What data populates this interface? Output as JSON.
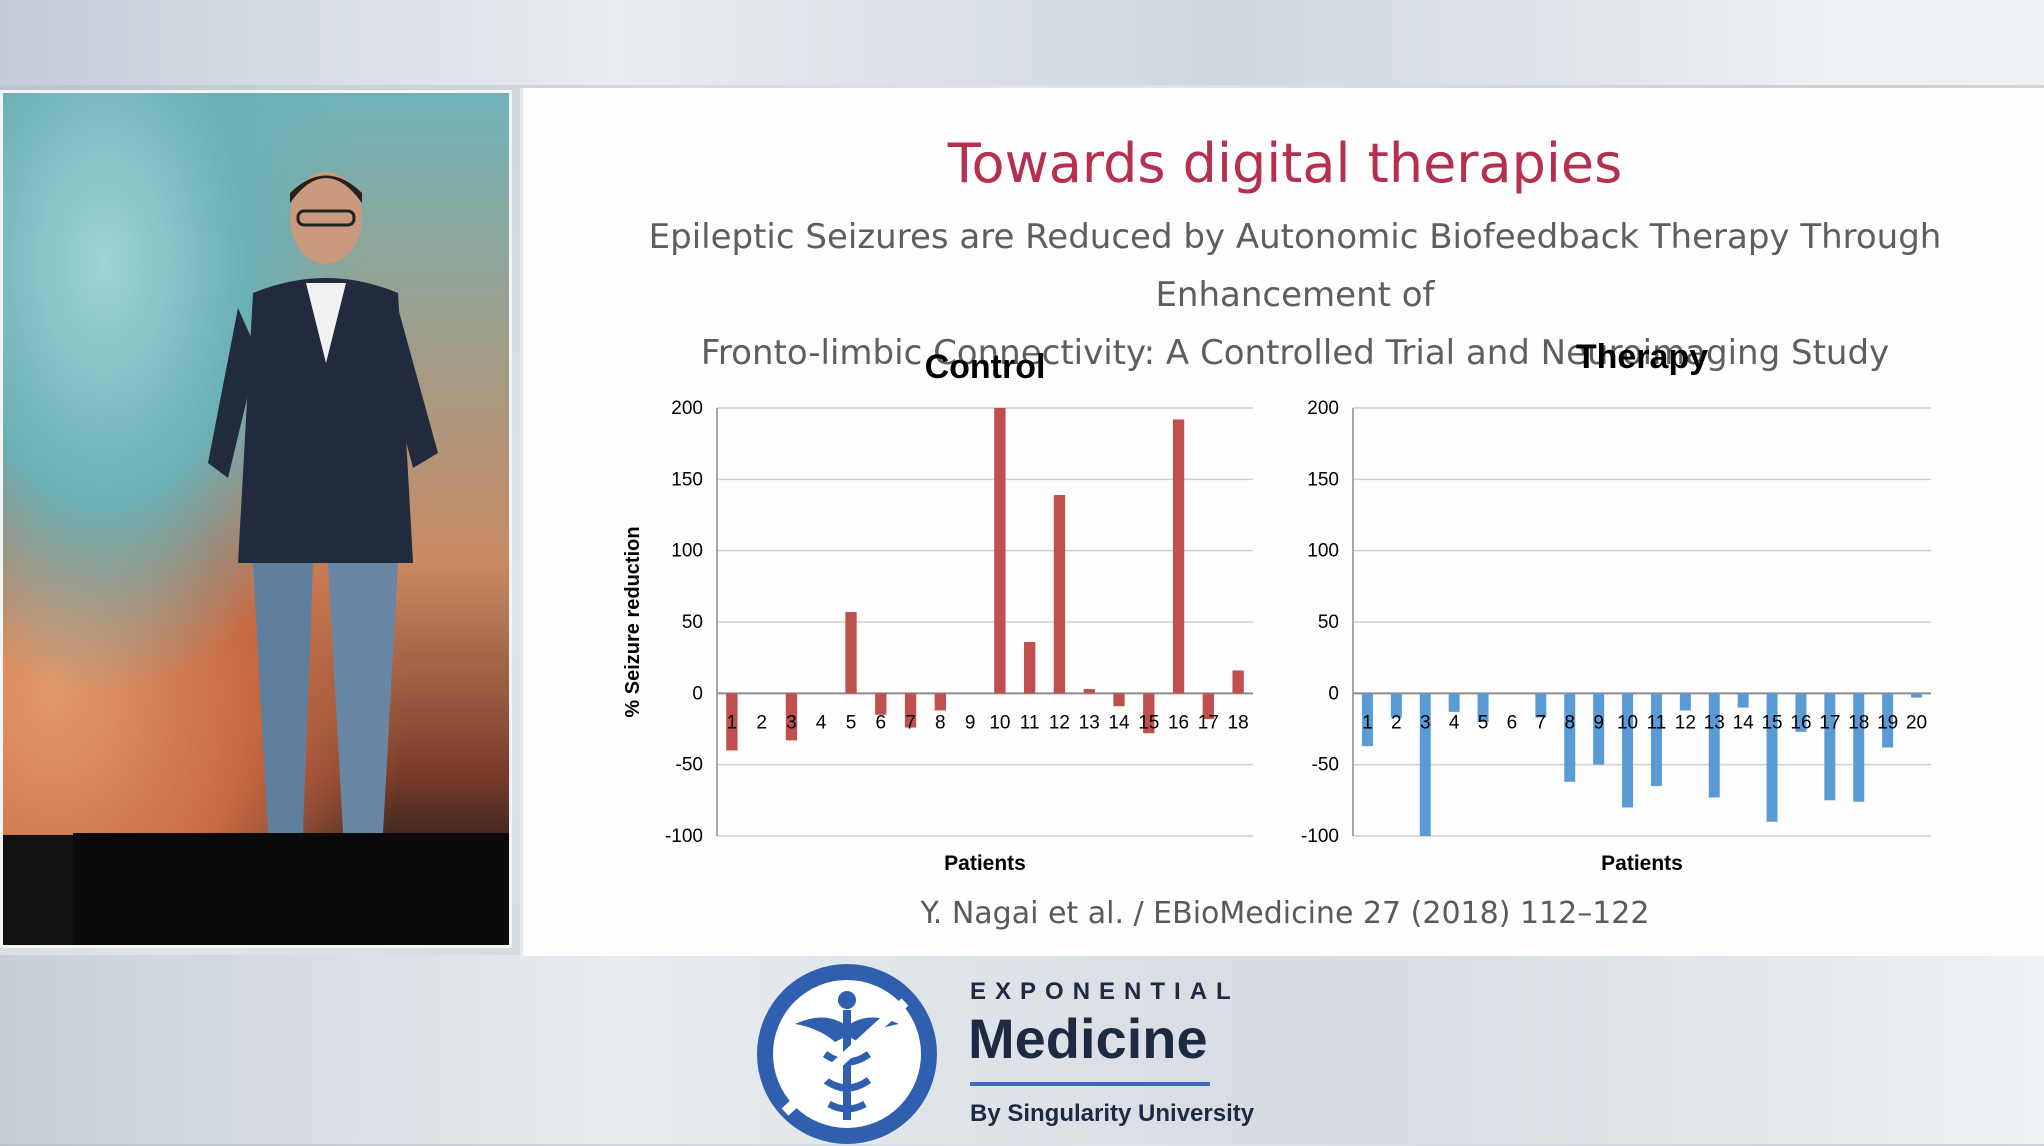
{
  "slide": {
    "title": "Towards digital therapies",
    "subtitle_line1": "Epileptic Seizures are Reduced by Autonomic Biofeedback Therapy Through Enhancement of",
    "subtitle_line2": "Fronto-limbic Connectivity: A Controlled Trial and Neuroimaging Study",
    "citation": "Y. Nagai et al. / EBioMedicine 27 (2018) 112–122"
  },
  "logo": {
    "line1": "EXPONENTIAL",
    "line2": "Medicine",
    "line3": "By Singularity University"
  },
  "colors": {
    "control_bar": "#c0504d",
    "therapy_bar": "#5b9bd5",
    "title": "#b52f4e",
    "logo_navy": "#1e2a44",
    "logo_blue": "#2f5fae"
  },
  "chart_data": [
    {
      "type": "bar",
      "title": "Control",
      "xlabel": "Patients",
      "ylabel": "% Seizure reduction",
      "ylim": [
        -100,
        200
      ],
      "yticks": [
        200,
        150,
        100,
        50,
        0,
        -50,
        -100
      ],
      "grid": true,
      "categories": [
        "1",
        "2",
        "3",
        "4",
        "5",
        "6",
        "7",
        "8",
        "9",
        "10",
        "11",
        "12",
        "13",
        "14",
        "15",
        "16",
        "17",
        "18"
      ],
      "values": [
        -40,
        0,
        -33,
        0,
        57,
        -15,
        -24,
        -12,
        0,
        200,
        36,
        139,
        3,
        -9,
        -28,
        192,
        -18,
        16
      ]
    },
    {
      "type": "bar",
      "title": "Therapy",
      "xlabel": "Patients",
      "ylabel": "",
      "ylim": [
        -100,
        200
      ],
      "yticks": [
        200,
        150,
        100,
        50,
        0,
        -50,
        -100
      ],
      "grid": true,
      "categories": [
        "1",
        "2",
        "3",
        "4",
        "5",
        "6",
        "7",
        "8",
        "9",
        "10",
        "11",
        "12",
        "13",
        "14",
        "15",
        "16",
        "17",
        "18",
        "19",
        "20"
      ],
      "values": [
        -37,
        -17,
        -100,
        -13,
        -20,
        0,
        -17,
        -62,
        -50,
        -80,
        -65,
        -12,
        -73,
        -10,
        -90,
        -27,
        -75,
        -76,
        -38,
        -3
      ]
    }
  ]
}
